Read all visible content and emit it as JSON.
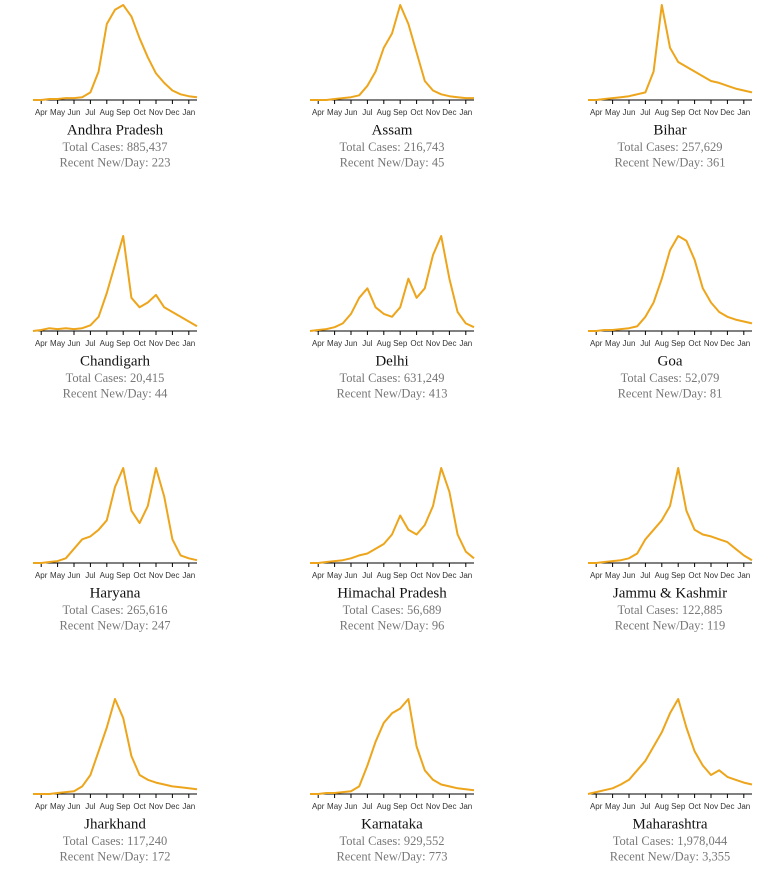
{
  "axis": {
    "xlim": [
      0,
      20
    ],
    "ylim": [
      0,
      100
    ],
    "xticks": [
      {
        "value": 1,
        "label": "Apr"
      },
      {
        "value": 3,
        "label": "May"
      },
      {
        "value": 5,
        "label": "Jun"
      },
      {
        "value": 7,
        "label": "Jul"
      },
      {
        "value": 9,
        "label": "Aug"
      },
      {
        "value": 11,
        "label": "Sep"
      },
      {
        "value": 13,
        "label": "Oct"
      },
      {
        "value": 15,
        "label": "Nov"
      },
      {
        "value": 17,
        "label": "Dec"
      },
      {
        "value": 19,
        "label": "Jan"
      }
    ],
    "color": "#eda51c"
  },
  "chart_data": [
    {
      "type": "line",
      "title": "Andhra Pradesh",
      "annotations": [
        "Total Cases: 885,437",
        "Recent New/Day: 223"
      ],
      "values": [
        0,
        0,
        1,
        1,
        2,
        2,
        3,
        8,
        30,
        80,
        95,
        100,
        88,
        65,
        45,
        28,
        18,
        10,
        6,
        4,
        3
      ]
    },
    {
      "type": "line",
      "title": "Assam",
      "annotations": [
        "Total Cases: 216,743",
        "Recent New/Day: 45"
      ],
      "values": [
        0,
        0,
        0,
        1,
        2,
        3,
        5,
        15,
        30,
        55,
        70,
        100,
        80,
        50,
        20,
        10,
        6,
        4,
        3,
        2,
        2
      ]
    },
    {
      "type": "line",
      "title": "Bihar",
      "annotations": [
        "Total Cases: 257,629",
        "Recent New/Day: 361"
      ],
      "values": [
        0,
        0,
        1,
        2,
        3,
        4,
        6,
        8,
        30,
        100,
        55,
        40,
        35,
        30,
        25,
        20,
        18,
        15,
        12,
        10,
        8
      ]
    },
    {
      "type": "line",
      "title": "Chandigarh",
      "annotations": [
        "Total Cases: 20,415",
        "Recent New/Day: 44"
      ],
      "values": [
        0,
        1,
        3,
        2,
        3,
        2,
        3,
        6,
        15,
        40,
        70,
        100,
        35,
        25,
        30,
        38,
        25,
        20,
        15,
        10,
        5
      ]
    },
    {
      "type": "line",
      "title": "Delhi",
      "annotations": [
        "Total Cases: 631,249",
        "Recent New/Day: 413"
      ],
      "values": [
        0,
        1,
        2,
        4,
        8,
        18,
        35,
        45,
        25,
        18,
        15,
        25,
        55,
        35,
        45,
        80,
        100,
        55,
        20,
        8,
        4
      ]
    },
    {
      "type": "line",
      "title": "Goa",
      "annotations": [
        "Total Cases: 52,079",
        "Recent New/Day: 81"
      ],
      "values": [
        0,
        0,
        1,
        1,
        2,
        3,
        5,
        15,
        30,
        55,
        85,
        100,
        95,
        75,
        45,
        30,
        20,
        15,
        12,
        10,
        8
      ]
    },
    {
      "type": "line",
      "title": "Haryana",
      "annotations": [
        "Total Cases: 265,616",
        "Recent New/Day: 247"
      ],
      "values": [
        0,
        0,
        1,
        2,
        5,
        15,
        25,
        28,
        35,
        45,
        80,
        100,
        55,
        42,
        60,
        100,
        70,
        25,
        8,
        5,
        3
      ]
    },
    {
      "type": "line",
      "title": "Himachal Pradesh",
      "annotations": [
        "Total Cases: 56,689",
        "Recent New/Day: 96"
      ],
      "values": [
        0,
        0,
        1,
        2,
        3,
        5,
        8,
        10,
        15,
        20,
        30,
        50,
        35,
        30,
        40,
        60,
        100,
        75,
        30,
        12,
        5
      ]
    },
    {
      "type": "line",
      "title": "Jammu & Kashmir",
      "annotations": [
        "Total Cases: 122,885",
        "Recent New/Day: 119"
      ],
      "values": [
        0,
        0,
        1,
        2,
        3,
        5,
        10,
        25,
        35,
        45,
        60,
        100,
        55,
        35,
        30,
        28,
        25,
        22,
        15,
        8,
        3
      ]
    },
    {
      "type": "line",
      "title": "Jharkhand",
      "annotations": [
        "Total Cases: 117,240",
        "Recent New/Day: 172"
      ],
      "values": [
        0,
        0,
        0,
        1,
        2,
        3,
        8,
        20,
        45,
        70,
        100,
        80,
        40,
        20,
        15,
        12,
        10,
        8,
        7,
        6,
        5
      ]
    },
    {
      "type": "line",
      "title": "Karnataka",
      "annotations": [
        "Total Cases: 929,552",
        "Recent New/Day: 773"
      ],
      "values": [
        0,
        0,
        1,
        1,
        2,
        3,
        8,
        30,
        55,
        75,
        85,
        90,
        100,
        50,
        25,
        15,
        10,
        8,
        6,
        5,
        4
      ]
    },
    {
      "type": "line",
      "title": "Maharashtra",
      "annotations": [
        "Total Cases: 1,978,044",
        "Recent New/Day: 3,355"
      ],
      "values": [
        0,
        2,
        4,
        6,
        10,
        15,
        25,
        35,
        50,
        65,
        85,
        100,
        70,
        45,
        30,
        20,
        25,
        18,
        15,
        12,
        10
      ]
    }
  ]
}
